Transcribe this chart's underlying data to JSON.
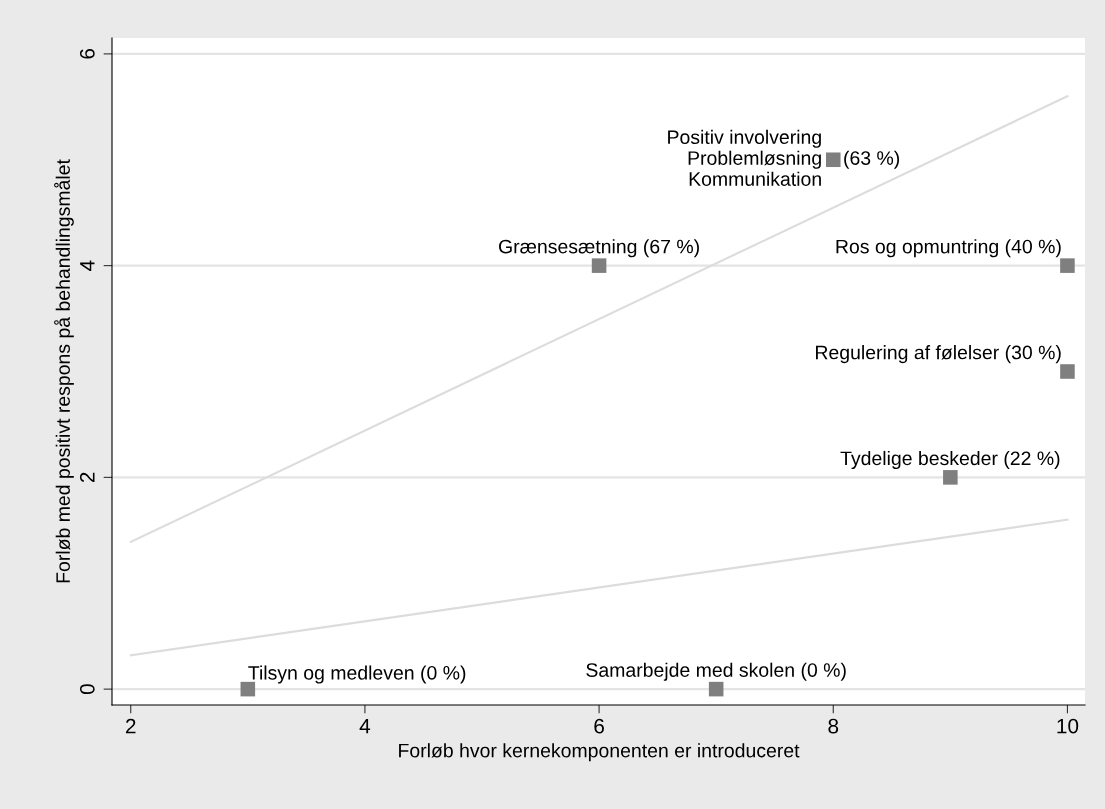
{
  "chart_data": {
    "type": "scatter",
    "xlabel": "Forløb hvor kernekomponenten er introduceret",
    "ylabel": "Forløb med positivt respons på behandlingsmålet",
    "xlim": [
      1.84,
      10.15
    ],
    "xticks": [
      2,
      4,
      6,
      8,
      10
    ],
    "ylim": [
      -0.15,
      6.15
    ],
    "yticks": [
      0,
      2,
      4,
      6
    ],
    "grid": "y",
    "marker": "square",
    "legend": false,
    "series": [
      {
        "color": "#7f7f7f",
        "x": [
          3,
          7,
          6,
          8,
          10,
          10,
          9
        ],
        "values": [
          0,
          0,
          4,
          5,
          4,
          3,
          2
        ]
      },
      {
        "type": "line",
        "color": "#dcdcdc",
        "marker": "none",
        "x": [
          2,
          10
        ],
        "values": [
          1.39,
          5.6
        ]
      },
      {
        "type": "line",
        "color": "#dcdcdc",
        "marker": "none",
        "x": [
          2,
          10
        ],
        "values": [
          0.32,
          1.6
        ]
      }
    ],
    "annotations": [
      {
        "text": "Tilsyn og medleven (0 %)",
        "x": 3,
        "y": 0
      },
      {
        "text": "Samarbejde med skolen (0 %)",
        "x": 7,
        "y": 0
      },
      {
        "text": "Grænsesætning (67 %)",
        "x": 6,
        "y": 4
      },
      {
        "text": "Positiv involvering\nProblemløsning\nKommunikation",
        "x": 8,
        "y": 5
      },
      {
        "text": "(63 %)",
        "x": 8,
        "y": 5
      },
      {
        "text": "Ros og opmuntring (40 %)",
        "x": 10,
        "y": 4
      },
      {
        "text": "Regulering af følelser (30 %)",
        "x": 10,
        "y": 3
      },
      {
        "text": "Tydelige beskeder (22 %)",
        "x": 9,
        "y": 2
      }
    ]
  }
}
